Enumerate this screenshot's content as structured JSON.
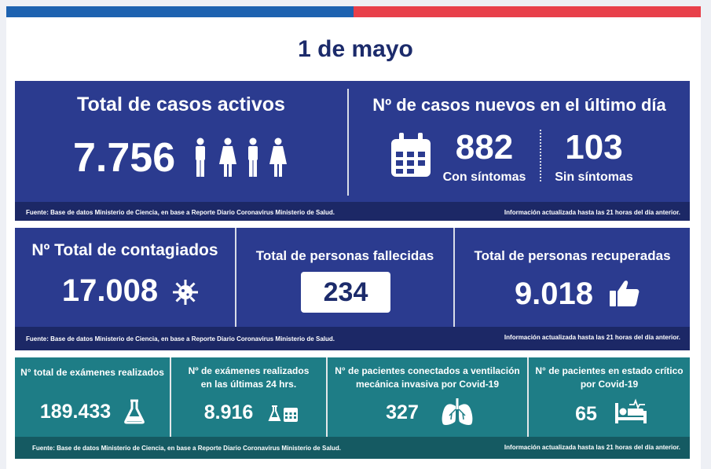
{
  "date": "1 de mayo",
  "row1": {
    "active": {
      "title": "Total de casos activos",
      "value": "7.756"
    },
    "new": {
      "title": "Nº de casos nuevos en el último día",
      "with_symptoms": {
        "value": "882",
        "label": "Con síntomas"
      },
      "without_symptoms": {
        "value": "103",
        "label": "Sin síntomas"
      }
    },
    "footer_source": "Fuente: Base de datos Ministerio de Ciencia, en base a Reporte Diario Coronavirus Ministerio de Salud.",
    "footer_update": "Información actualizada hasta las 21 horas  del día anterior."
  },
  "row2": {
    "total": {
      "title": "Nº Total de contagiados",
      "value": "17.008"
    },
    "deaths": {
      "title": "Total de personas fallecidas",
      "value": "234"
    },
    "recovered": {
      "title": "Total de personas recuperadas",
      "value": "9.018"
    },
    "footer_source": "Fuente: Base de datos Ministerio de Ciencia, en base a Reporte Diario Coronavirus Ministerio de Salud.",
    "footer_update": "Información actualizada hasta las 21 horas  del día anterior."
  },
  "row3": {
    "exams_total": {
      "title": "N° total de exámenes realizados",
      "value": "189.433"
    },
    "exams_24h": {
      "title_1": "Nº de exámenes realizados",
      "title_2": "en las últimas 24 hrs.",
      "value": "8.916"
    },
    "ventilation": {
      "title_1": "N° de pacientes conectados a ventilación",
      "title_2": "mecánica invasiva por Covid-19",
      "value": "327"
    },
    "critical": {
      "title_1": "N° de pacientes en estado crítico",
      "title_2": "por Covid-19",
      "value": "65"
    },
    "footer_source": "Fuente: Base de datos Ministerio de Ciencia, en base a Reporte Diario Coronavirus Ministerio de Salud.",
    "footer_update": "Información actualizada hasta las 21 horas  del día anterior."
  },
  "colors": {
    "blue": "#1d62b0",
    "red": "#e8404a",
    "navy_panel": "#2b3b8f",
    "teal_panel": "#1e7d86",
    "title": "#1c2b6b"
  }
}
